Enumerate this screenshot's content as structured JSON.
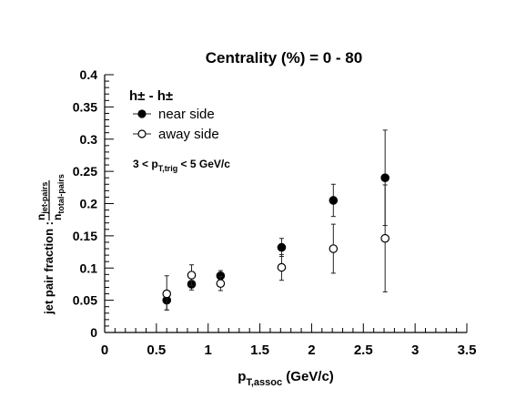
{
  "chart_data": {
    "type": "scatter",
    "title": "Centrality (%) = 0 - 80",
    "xlabel": {
      "main": "p",
      "sub": "T,assoc",
      "tail": " (GeV/c)"
    },
    "ylabel": {
      "main": "jet pair fraction : ",
      "num": "n",
      "num_sub": "jet-pairs",
      "den": "n",
      "den_sub": "total-pairs"
    },
    "xlim": [
      0,
      3.5
    ],
    "ylim": [
      0,
      0.4
    ],
    "x_ticks": [
      {
        "value": 0,
        "label": "0"
      },
      {
        "value": 0.5,
        "label": "0.5"
      },
      {
        "value": 1,
        "label": "1"
      },
      {
        "value": 1.5,
        "label": "1.5"
      },
      {
        "value": 2,
        "label": "2"
      },
      {
        "value": 2.5,
        "label": "2.5"
      },
      {
        "value": 3,
        "label": "3"
      },
      {
        "value": 3.5,
        "label": "3.5"
      }
    ],
    "y_ticks": [
      {
        "value": 0,
        "label": "0"
      },
      {
        "value": 0.05,
        "label": "0.05"
      },
      {
        "value": 0.1,
        "label": "0.1"
      },
      {
        "value": 0.15,
        "label": "0.15"
      },
      {
        "value": 0.2,
        "label": "0.2"
      },
      {
        "value": 0.25,
        "label": "0.25"
      },
      {
        "value": 0.3,
        "label": "0.3"
      },
      {
        "value": 0.35,
        "label": "0.35"
      },
      {
        "value": 0.4,
        "label": "0.4"
      }
    ],
    "grid": false,
    "legend_position": "top-left",
    "legend_header": "h± - h±",
    "annotation": {
      "pre": "3 < p",
      "sub": "T,trig",
      "post": " < 5 GeV/c"
    },
    "series": [
      {
        "name": "near side",
        "marker": "filled-circle",
        "points": [
          {
            "x": 0.6,
            "y": 0.05,
            "err_lo": 0.015,
            "err_hi": 0.013
          },
          {
            "x": 0.84,
            "y": 0.075,
            "err_lo": 0.009,
            "err_hi": 0.009
          },
          {
            "x": 1.12,
            "y": 0.088,
            "err_lo": 0.008,
            "err_hi": 0.008
          },
          {
            "x": 1.71,
            "y": 0.132,
            "err_lo": 0.014,
            "err_hi": 0.014
          },
          {
            "x": 2.21,
            "y": 0.205,
            "err_lo": 0.025,
            "err_hi": 0.025
          },
          {
            "x": 2.71,
            "y": 0.24,
            "err_lo": 0.074,
            "err_hi": 0.074
          }
        ]
      },
      {
        "name": "away side",
        "marker": "open-circle",
        "points": [
          {
            "x": 0.6,
            "y": 0.06,
            "err_lo": 0.025,
            "err_hi": 0.028
          },
          {
            "x": 0.84,
            "y": 0.089,
            "err_lo": 0.016,
            "err_hi": 0.016
          },
          {
            "x": 1.12,
            "y": 0.076,
            "err_lo": 0.011,
            "err_hi": 0.011
          },
          {
            "x": 1.71,
            "y": 0.101,
            "err_lo": 0.02,
            "err_hi": 0.02
          },
          {
            "x": 2.21,
            "y": 0.13,
            "err_lo": 0.038,
            "err_hi": 0.038
          },
          {
            "x": 2.71,
            "y": 0.146,
            "err_lo": 0.083,
            "err_hi": 0.083
          }
        ]
      }
    ]
  }
}
